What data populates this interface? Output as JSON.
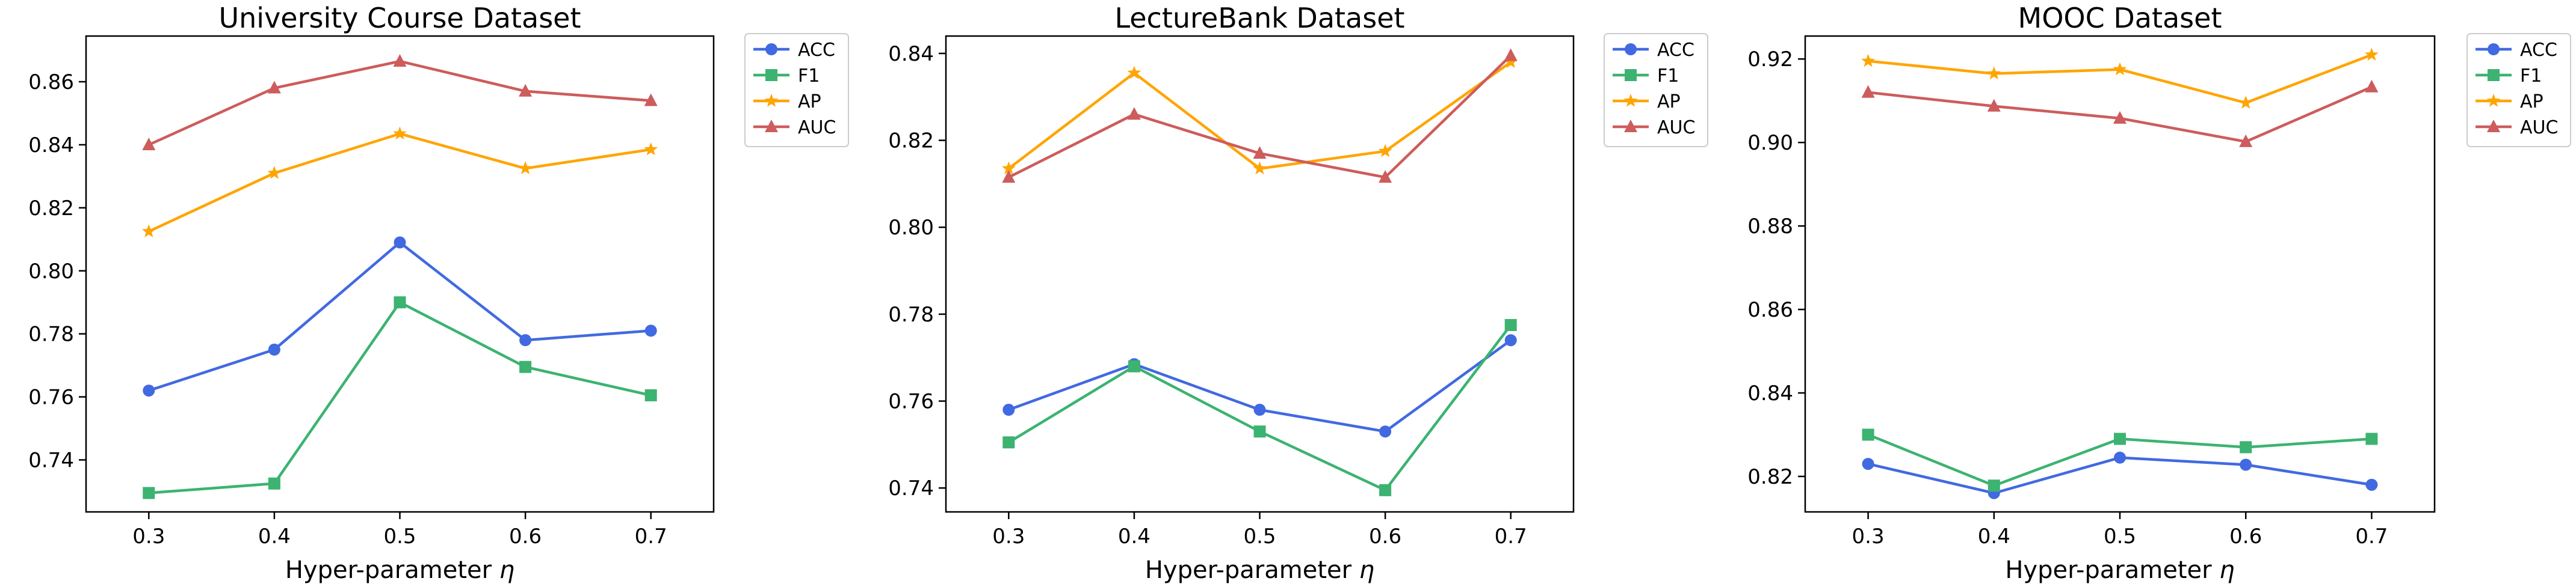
{
  "chart_data": [
    {
      "type": "line",
      "title": "University Course Dataset",
      "xlabel": "Hyper-parameter η",
      "ylabel": "",
      "x": [
        0.3,
        0.4,
        0.5,
        0.6,
        0.7
      ],
      "xticks": [
        "0.3",
        "0.4",
        "0.5",
        "0.6",
        "0.7"
      ],
      "xlim": [
        0.25,
        0.75
      ],
      "ylim": [
        0.7235,
        0.8745
      ],
      "yticks": [
        "0.74",
        "0.76",
        "0.78",
        "0.80",
        "0.82",
        "0.84",
        "0.86"
      ],
      "grid": false,
      "legend_position": "outside-right",
      "series": [
        {
          "name": "ACC",
          "color": "#4169e1",
          "marker": "circle",
          "values": [
            0.762,
            0.775,
            0.809,
            0.778,
            0.781
          ]
        },
        {
          "name": "F1",
          "color": "#3cb371",
          "marker": "square",
          "values": [
            0.7295,
            0.7325,
            0.79,
            0.7695,
            0.7605
          ]
        },
        {
          "name": "AP",
          "color": "#ffa500",
          "marker": "star",
          "values": [
            0.8125,
            0.831,
            0.8435,
            0.8325,
            0.8385
          ]
        },
        {
          "name": "AUC",
          "color": "#cd5c5c",
          "marker": "triangle",
          "values": [
            0.84,
            0.858,
            0.8665,
            0.857,
            0.854
          ]
        }
      ]
    },
    {
      "type": "line",
      "title": "LectureBank Dataset",
      "xlabel": "Hyper-parameter η",
      "ylabel": "",
      "x": [
        0.3,
        0.4,
        0.5,
        0.6,
        0.7
      ],
      "xticks": [
        "0.3",
        "0.4",
        "0.5",
        "0.6",
        "0.7"
      ],
      "xlim": [
        0.25,
        0.75
      ],
      "ylim": [
        0.7345,
        0.844
      ],
      "yticks": [
        "0.74",
        "0.76",
        "0.78",
        "0.80",
        "0.82",
        "0.84"
      ],
      "grid": false,
      "legend_position": "outside-right",
      "series": [
        {
          "name": "ACC",
          "color": "#4169e1",
          "marker": "circle",
          "values": [
            0.758,
            0.7685,
            0.758,
            0.753,
            0.774
          ]
        },
        {
          "name": "F1",
          "color": "#3cb371",
          "marker": "square",
          "values": [
            0.7505,
            0.768,
            0.753,
            0.7395,
            0.7775
          ]
        },
        {
          "name": "AP",
          "color": "#ffa500",
          "marker": "star",
          "values": [
            0.8135,
            0.8355,
            0.8135,
            0.8175,
            0.838
          ]
        },
        {
          "name": "AUC",
          "color": "#cd5c5c",
          "marker": "triangle",
          "values": [
            0.8115,
            0.826,
            0.817,
            0.8115,
            0.8395
          ]
        }
      ]
    },
    {
      "type": "line",
      "title": "MOOC Dataset",
      "xlabel": "Hyper-parameter η",
      "ylabel": "",
      "x": [
        0.3,
        0.4,
        0.5,
        0.6,
        0.7
      ],
      "xticks": [
        "0.3",
        "0.4",
        "0.5",
        "0.6",
        "0.7"
      ],
      "xlim": [
        0.25,
        0.75
      ],
      "ylim": [
        0.8115,
        0.9255
      ],
      "yticks": [
        "0.82",
        "0.84",
        "0.86",
        "0.88",
        "0.90",
        "0.92"
      ],
      "grid": false,
      "legend_position": "outside-right",
      "series": [
        {
          "name": "ACC",
          "color": "#4169e1",
          "marker": "circle",
          "values": [
            0.823,
            0.816,
            0.8245,
            0.8228,
            0.818
          ]
        },
        {
          "name": "F1",
          "color": "#3cb371",
          "marker": "square",
          "values": [
            0.83,
            0.8178,
            0.829,
            0.827,
            0.829
          ]
        },
        {
          "name": "AP",
          "color": "#ffa500",
          "marker": "star",
          "values": [
            0.9195,
            0.9165,
            0.9175,
            0.9095,
            0.921
          ]
        },
        {
          "name": "AUC",
          "color": "#cd5c5c",
          "marker": "triangle",
          "values": [
            0.912,
            0.9087,
            0.9058,
            0.9002,
            0.9133
          ]
        }
      ]
    }
  ]
}
